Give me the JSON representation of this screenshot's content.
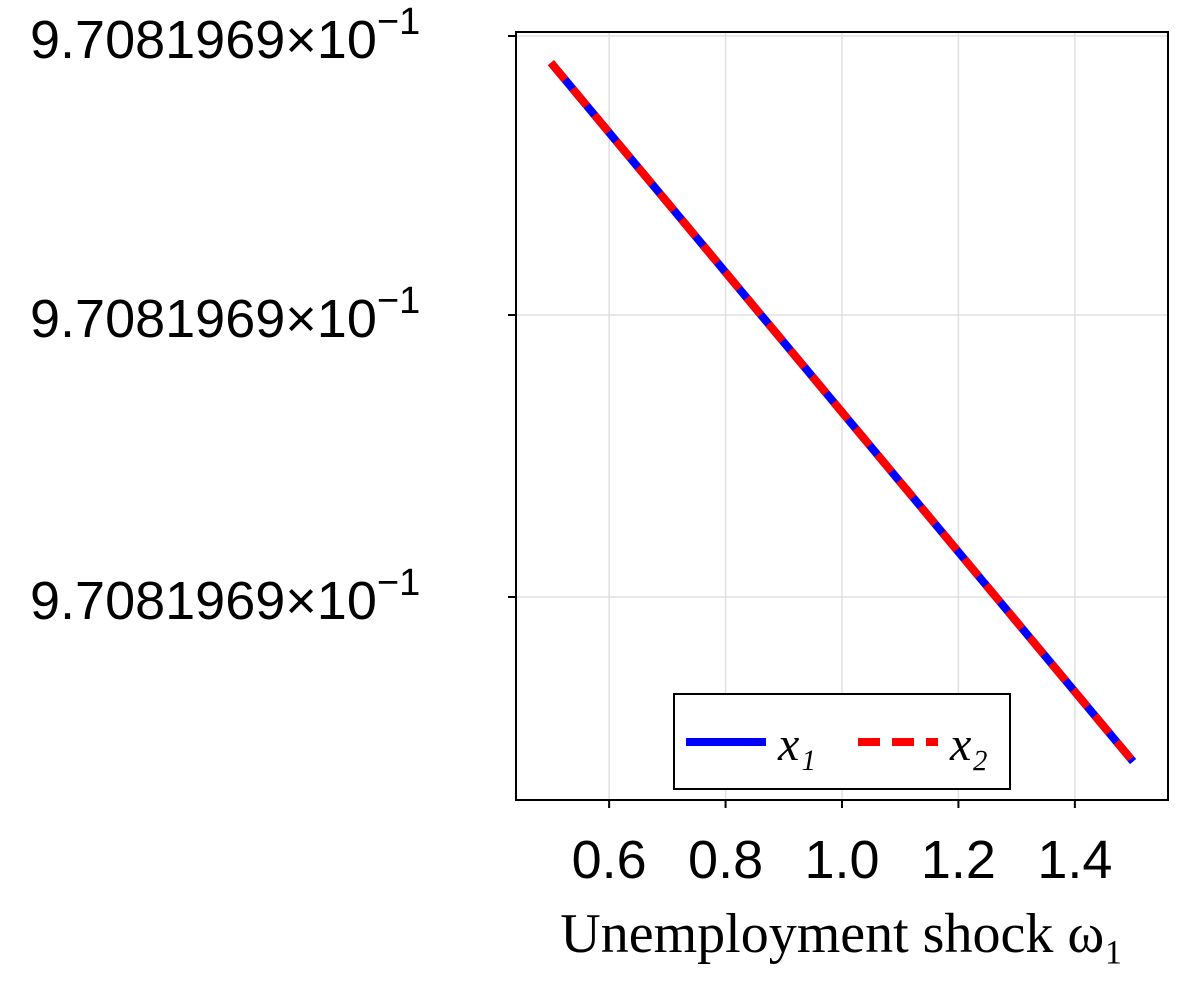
{
  "chart_data": {
    "type": "line",
    "title": "",
    "xlabel": "Unemployment shock ω₁",
    "ylabel": "",
    "xlim": [
      0.44,
      1.56
    ],
    "x_ticks": [
      "0.6",
      "0.8",
      "1.0",
      "1.2",
      "1.4"
    ],
    "x_tick_values": [
      0.6,
      0.8,
      1.0,
      1.2,
      1.4
    ],
    "y_ticks": [
      "9.7081969×10⁻¹",
      "9.7081969×10⁻¹",
      "9.7081969×10⁻¹"
    ],
    "grid": true,
    "legend_position": "bottom-right",
    "series": [
      {
        "name": "x₁",
        "style": "solid",
        "color": "#0000ff",
        "x": [
          0.5,
          1.5
        ],
        "y_rel": [
          0.96,
          0.05
        ]
      },
      {
        "name": "x₂",
        "style": "dashed",
        "color": "#ff0000",
        "x": [
          0.5,
          1.5
        ],
        "y_rel": [
          0.96,
          0.05
        ]
      }
    ]
  }
}
